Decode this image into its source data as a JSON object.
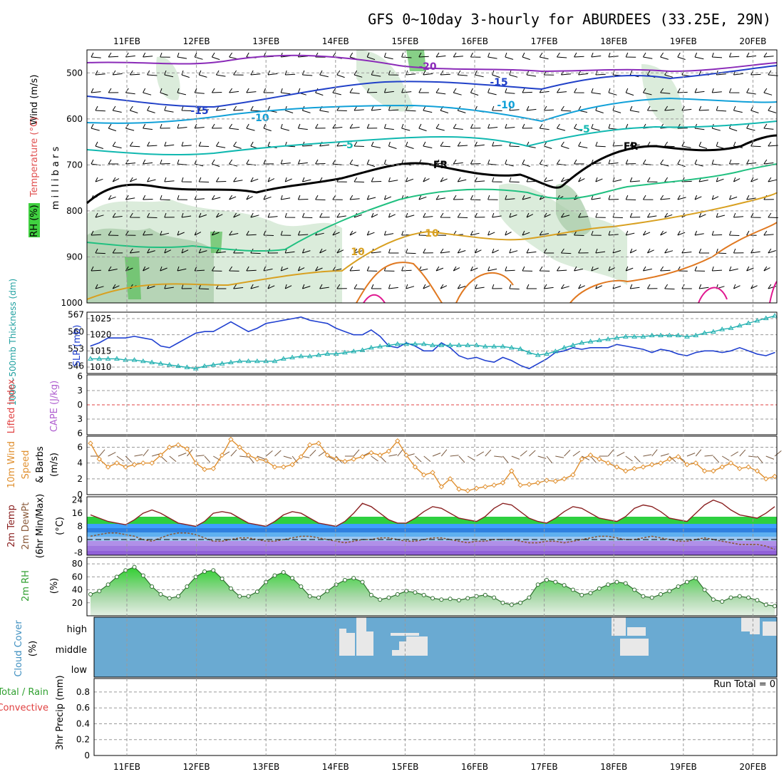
{
  "title": "GFS 0~10day 3-hourly for ABURDEES (33.25E, 29N)",
  "day_labels": [
    "11FEB",
    "12FEB",
    "13FEB",
    "14FEB",
    "15FEB",
    "16FEB",
    "17FEB",
    "18FEB",
    "19FEB",
    "20FEB"
  ],
  "colors": {
    "wind_barb": "#000000",
    "thickness": "#20b0b0",
    "slp": "#2040d0",
    "li_zero": "#e04040",
    "wind_speed": "#e09030",
    "temp_fill": "#30c030",
    "dewpt": "#8a5a3a",
    "rh_fill": "#40c040",
    "cloud": "#6aaad2",
    "cloud_clear": "#e8e8e8"
  },
  "panels": {
    "upper": {
      "labels": {
        "wind": "Wind (m/s)",
        "temperature": "Temperature (°C)",
        "rh": "RH (%)",
        "yunit": "m i l l i b a r s"
      },
      "pressure_ticks": [
        500,
        600,
        700,
        800,
        900,
        1000
      ],
      "contour_labels": [
        {
          "text": "-20"
        },
        {
          "text": "-15"
        },
        {
          "text": "-15"
        },
        {
          "text": "-10"
        },
        {
          "text": "-10"
        },
        {
          "text": "-5"
        },
        {
          "text": "-5"
        },
        {
          "text": "FR"
        },
        {
          "text": "FR"
        },
        {
          "text": "10"
        },
        {
          "text": "10"
        }
      ]
    },
    "thickness": {
      "labels": {
        "thickness": "1000~500mb Thickness (dm)",
        "slp": "SLP (mb)"
      },
      "left_ticks": [
        567,
        560,
        553,
        546
      ],
      "right_ticks": [
        1025,
        1020,
        1015,
        1010
      ]
    },
    "cape": {
      "labels": {
        "li": "Lifted Index",
        "cape": "CAPE (J/kg)"
      },
      "ticks": [
        6,
        3,
        0,
        3,
        6
      ]
    },
    "wind10m": {
      "labels": {
        "a": "10m Wind",
        "b": "Speed",
        "c": "& Barbs",
        "unit": "(m/s)"
      },
      "ticks": [
        6,
        4,
        2,
        0
      ]
    },
    "temp2m": {
      "labels": {
        "a": "2m Temp",
        "b": "2m DewPt",
        "c": "(6hr Min/Max)",
        "unit": "(°C)"
      },
      "ticks": [
        24,
        16,
        8,
        0,
        -8
      ]
    },
    "rh2m": {
      "labels": {
        "a": "2m RH",
        "unit": "(%)"
      },
      "ticks": [
        80,
        60,
        40,
        20
      ]
    },
    "cloud": {
      "labels": {
        "a": "Cloud Cover",
        "unit": "(%)"
      },
      "levels": [
        "high",
        "middle",
        "low"
      ]
    },
    "precip": {
      "labels": {
        "a": "Total / Rain",
        "b": "Convective",
        "c": "3hr Precip (mm)"
      },
      "ticks": [
        "0.8",
        "0.6",
        "0.4",
        "0.2",
        "0"
      ],
      "run_total": "Run Total = 0"
    }
  },
  "chart_data": [
    {
      "type": "line",
      "title": "Sea Level Pressure (mb)",
      "x_unit": "hours from 10 FEB 12Z (3-hourly)",
      "x": [
        0,
        3,
        6,
        9,
        12,
        15,
        18,
        21,
        24,
        27,
        30,
        33,
        36,
        39,
        42,
        45,
        48,
        51,
        54,
        57,
        60,
        63,
        66,
        69,
        72,
        75,
        78,
        81,
        84,
        87,
        90,
        93,
        96,
        99,
        102,
        105,
        108,
        111,
        114,
        117,
        120,
        123,
        126,
        129,
        132,
        135,
        138,
        141,
        144,
        147,
        150,
        153,
        156,
        159,
        162,
        165,
        168,
        171,
        174,
        177,
        180,
        183,
        186,
        189,
        192,
        195,
        198,
        201,
        204,
        207,
        210,
        213,
        216,
        219,
        222,
        225,
        228,
        231,
        234
      ],
      "series": [
        {
          "name": "SLP",
          "values": [
            1016.5,
            1017.5,
            1019,
            1019,
            1019,
            1019.5,
            1019,
            1018.5,
            1016.5,
            1016,
            1017.5,
            1019,
            1020.5,
            1021,
            1021,
            1022.5,
            1024,
            1022.5,
            1021,
            1022,
            1023.5,
            1024,
            1024.5,
            1025,
            1025.5,
            1024.5,
            1024,
            1023.5,
            1022,
            1021,
            1020,
            1020,
            1021.5,
            1019.5,
            1016.5,
            1016,
            1017.5,
            1016.5,
            1015,
            1015,
            1017.5,
            1016,
            1013.5,
            1012.5,
            1013,
            1012,
            1011.5,
            1013,
            1012,
            1010.5,
            1009.5,
            1011,
            1012.5,
            1014.5,
            1015,
            1016,
            1015.5,
            1016,
            1016,
            1016,
            1017,
            1016.5,
            1016,
            1015.5,
            1014.5,
            1015.5,
            1015,
            1014,
            1013.5,
            1014.5,
            1015,
            1015,
            1014.5,
            1015,
            1016,
            1015,
            1014,
            1013.5,
            1014.5
          ]
        }
      ]
    },
    {
      "type": "line",
      "title": "1000-500mb Thickness (dm)",
      "x": [
        0,
        3,
        6,
        9,
        12,
        15,
        18,
        21,
        24,
        27,
        30,
        33,
        36,
        39,
        42,
        45,
        48,
        51,
        54,
        57,
        60,
        63,
        66,
        69,
        72,
        75,
        78,
        81,
        84,
        87,
        90,
        93,
        96,
        99,
        102,
        105,
        108,
        111,
        114,
        117,
        120,
        123,
        126,
        129,
        132,
        135,
        138,
        141,
        144,
        147,
        150,
        153,
        156,
        159,
        162,
        165,
        168,
        171,
        174,
        177,
        180,
        183,
        186,
        189,
        192,
        195,
        198,
        201,
        204,
        207,
        210,
        213,
        216,
        219,
        222,
        225,
        228,
        231,
        234
      ],
      "series": [
        {
          "name": "Thickness",
          "values": [
            549,
            549,
            549,
            549,
            548.5,
            548.5,
            548,
            547.5,
            547,
            546.5,
            546,
            545.5,
            545,
            546,
            546.5,
            547,
            547.5,
            548,
            548,
            548,
            548,
            548,
            549,
            549.5,
            550,
            550,
            550.5,
            551,
            551,
            551.5,
            552,
            552.5,
            553.5,
            554,
            554.5,
            555,
            555,
            555,
            555,
            554.5,
            554.5,
            554.5,
            554.5,
            554.5,
            554.5,
            554,
            554,
            554,
            553.5,
            553,
            551.5,
            550.5,
            551,
            552,
            553.5,
            554.5,
            555.5,
            556,
            556.5,
            557,
            557.5,
            558,
            558,
            558,
            558.5,
            558.5,
            558.5,
            558.5,
            558,
            558.5,
            559.5,
            560,
            561,
            561.5,
            562.5,
            563.5,
            564.5,
            565.5,
            566.5
          ]
        }
      ]
    },
    {
      "type": "line",
      "title": "10m Wind Speed (m/s)",
      "x": [
        0,
        3,
        6,
        9,
        12,
        15,
        18,
        21,
        24,
        27,
        30,
        33,
        36,
        39,
        42,
        45,
        48,
        51,
        54,
        57,
        60,
        63,
        66,
        69,
        72,
        75,
        78,
        81,
        84,
        87,
        90,
        93,
        96,
        99,
        102,
        105,
        108,
        111,
        114,
        117,
        120,
        123,
        126,
        129,
        132,
        135,
        138,
        141,
        144,
        147,
        150,
        153,
        156,
        159,
        162,
        165,
        168,
        171,
        174,
        177,
        180,
        183,
        186,
        189,
        192,
        195,
        198,
        201,
        204,
        207,
        210,
        213,
        216,
        219,
        222,
        225,
        228,
        231,
        234
      ],
      "series": [
        {
          "name": "Wind Speed",
          "values": [
            6.5,
            4.5,
            3.5,
            4,
            3.5,
            3.8,
            4,
            4,
            5,
            6,
            6.3,
            5.8,
            4,
            3.2,
            3.3,
            5,
            7,
            6,
            5,
            4.5,
            4.3,
            3.5,
            3.5,
            3.8,
            4.8,
            6.3,
            6.5,
            5,
            4.5,
            4.2,
            4.5,
            4.8,
            5.3,
            5,
            5.5,
            6.8,
            5,
            3.5,
            2.5,
            2.8,
            1,
            2,
            0.7,
            0.5,
            0.8,
            1,
            1.2,
            1.5,
            3,
            1.2,
            1.3,
            1.5,
            1.8,
            1.7,
            2,
            2.5,
            4.5,
            5,
            4.5,
            4,
            3.5,
            3,
            3.3,
            3.5,
            3.8,
            4,
            4.5,
            4.8,
            3.8,
            4,
            3,
            3,
            3.5,
            4,
            3.3,
            3.5,
            3,
            2,
            2.3
          ]
        }
      ]
    },
    {
      "type": "area",
      "title": "2m Temperature (°C)",
      "x": [
        0,
        3,
        6,
        9,
        12,
        15,
        18,
        21,
        24,
        27,
        30,
        33,
        36,
        39,
        42,
        45,
        48,
        51,
        54,
        57,
        60,
        63,
        66,
        69,
        72,
        75,
        78,
        81,
        84,
        87,
        90,
        93,
        96,
        99,
        102,
        105,
        108,
        111,
        114,
        117,
        120,
        123,
        126,
        129,
        132,
        135,
        138,
        141,
        144,
        147,
        150,
        153,
        156,
        159,
        162,
        165,
        168,
        171,
        174,
        177,
        180,
        183,
        186,
        189,
        192,
        195,
        198,
        201,
        204,
        207,
        210,
        213,
        216,
        219,
        222,
        225,
        228,
        231,
        234
      ],
      "series": [
        {
          "name": "2m Temp",
          "values": [
            15,
            13,
            11,
            10,
            9,
            12,
            16,
            18,
            16,
            13,
            10,
            9,
            8,
            11,
            16,
            17,
            16,
            13,
            10,
            9,
            8,
            11,
            15,
            17,
            16,
            13,
            10,
            9,
            8,
            11,
            16,
            22,
            20,
            16,
            12,
            10,
            10,
            13,
            17,
            20,
            19,
            16,
            13,
            12,
            11,
            14,
            19,
            22,
            21,
            17,
            13,
            11,
            10,
            13,
            17,
            20,
            19,
            16,
            13,
            12,
            11,
            14,
            19,
            21,
            20,
            17,
            13,
            12,
            11,
            16,
            21,
            24,
            22,
            18,
            15,
            14,
            13,
            16,
            20
          ]
        },
        {
          "name": "2m DewPt",
          "values": [
            2,
            3,
            4,
            4,
            3,
            2,
            0,
            -1,
            1,
            3,
            4,
            4,
            3,
            1,
            -1,
            -1,
            0,
            1,
            1,
            0,
            -1,
            -1,
            0,
            1,
            2,
            2,
            1,
            0,
            -1,
            -2,
            -1,
            0,
            0,
            1,
            1,
            0,
            -1,
            -1,
            0,
            1,
            1,
            0,
            -1,
            -2,
            -1,
            -1,
            0,
            0,
            0,
            -1,
            -2,
            -2,
            -1,
            -1,
            -2,
            -1,
            0,
            1,
            2,
            2,
            1,
            0,
            0,
            1,
            2,
            1,
            0,
            -1,
            -1,
            0,
            1,
            0,
            -1,
            -2,
            -3,
            -3,
            -3,
            -4,
            -6
          ]
        }
      ]
    },
    {
      "type": "area",
      "title": "2m RH (%)",
      "x": [
        0,
        3,
        6,
        9,
        12,
        15,
        18,
        21,
        24,
        27,
        30,
        33,
        36,
        39,
        42,
        45,
        48,
        51,
        54,
        57,
        60,
        63,
        66,
        69,
        72,
        75,
        78,
        81,
        84,
        87,
        90,
        93,
        96,
        99,
        102,
        105,
        108,
        111,
        114,
        117,
        120,
        123,
        126,
        129,
        132,
        135,
        138,
        141,
        144,
        147,
        150,
        153,
        156,
        159,
        162,
        165,
        168,
        171,
        174,
        177,
        180,
        183,
        186,
        189,
        192,
        195,
        198,
        201,
        204,
        207,
        210,
        213,
        216,
        219,
        222,
        225,
        228,
        231,
        234
      ],
      "series": [
        {
          "name": "2m RH",
          "values": [
            33,
            38,
            48,
            60,
            70,
            75,
            62,
            45,
            33,
            27,
            30,
            45,
            60,
            68,
            70,
            57,
            42,
            30,
            30,
            37,
            52,
            62,
            67,
            58,
            45,
            30,
            28,
            38,
            48,
            55,
            58,
            52,
            32,
            25,
            28,
            33,
            38,
            36,
            32,
            27,
            25,
            26,
            24,
            27,
            30,
            32,
            28,
            20,
            17,
            20,
            28,
            48,
            55,
            52,
            47,
            40,
            32,
            35,
            42,
            48,
            52,
            50,
            40,
            30,
            28,
            33,
            38,
            45,
            52,
            58,
            40,
            25,
            22,
            28,
            30,
            28,
            24,
            17,
            15
          ]
        }
      ]
    }
  ]
}
